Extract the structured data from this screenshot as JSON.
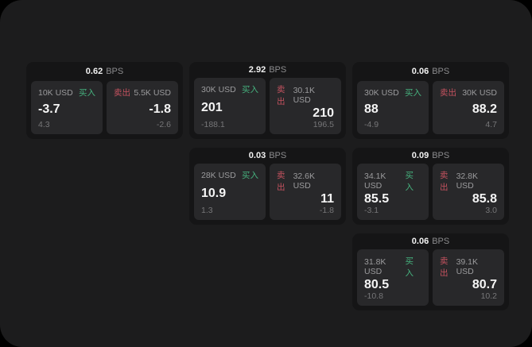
{
  "labels": {
    "buy": "买入",
    "sell": "卖出",
    "bps_unit": "BPS"
  },
  "colors": {
    "background": "#000000",
    "panel": "#1c1c1d",
    "card": "#151516",
    "tile": "#28282a",
    "text_primary": "#f2f2f2",
    "text_secondary": "#9b9b9d",
    "text_dim": "#767678",
    "buy_green": "#46b27e",
    "sell_red": "#c4525f"
  },
  "cards": [
    {
      "bps": "0.62",
      "buy": {
        "size": "10K USD",
        "value": "-3.7",
        "sub": "4.3"
      },
      "sell": {
        "size": "5.5K USD",
        "value": "-1.8",
        "sub": "-2.6"
      }
    },
    {
      "bps": "2.92",
      "buy": {
        "size": "30K USD",
        "value": "201",
        "sub": "-188.1"
      },
      "sell": {
        "size": "30.1K USD",
        "value": "210",
        "sub": "196.5"
      }
    },
    {
      "bps": "0.06",
      "buy": {
        "size": "30K USD",
        "value": "88",
        "sub": "-4.9"
      },
      "sell": {
        "size": "30K USD",
        "value": "88.2",
        "sub": "4.7"
      }
    },
    {
      "bps": "0.03",
      "buy": {
        "size": "28K USD",
        "value": "10.9",
        "sub": "1.3"
      },
      "sell": {
        "size": "32.6K USD",
        "value": "11",
        "sub": "-1.8"
      }
    },
    {
      "bps": "0.09",
      "buy": {
        "size": "34.1K USD",
        "value": "85.5",
        "sub": "-3.1"
      },
      "sell": {
        "size": "32.8K USD",
        "value": "85.8",
        "sub": "3.0"
      }
    },
    {
      "bps": "0.06",
      "buy": {
        "size": "31.8K USD",
        "value": "80.5",
        "sub": "-10.8"
      },
      "sell": {
        "size": "39.1K USD",
        "value": "80.7",
        "sub": "10.2"
      }
    }
  ]
}
